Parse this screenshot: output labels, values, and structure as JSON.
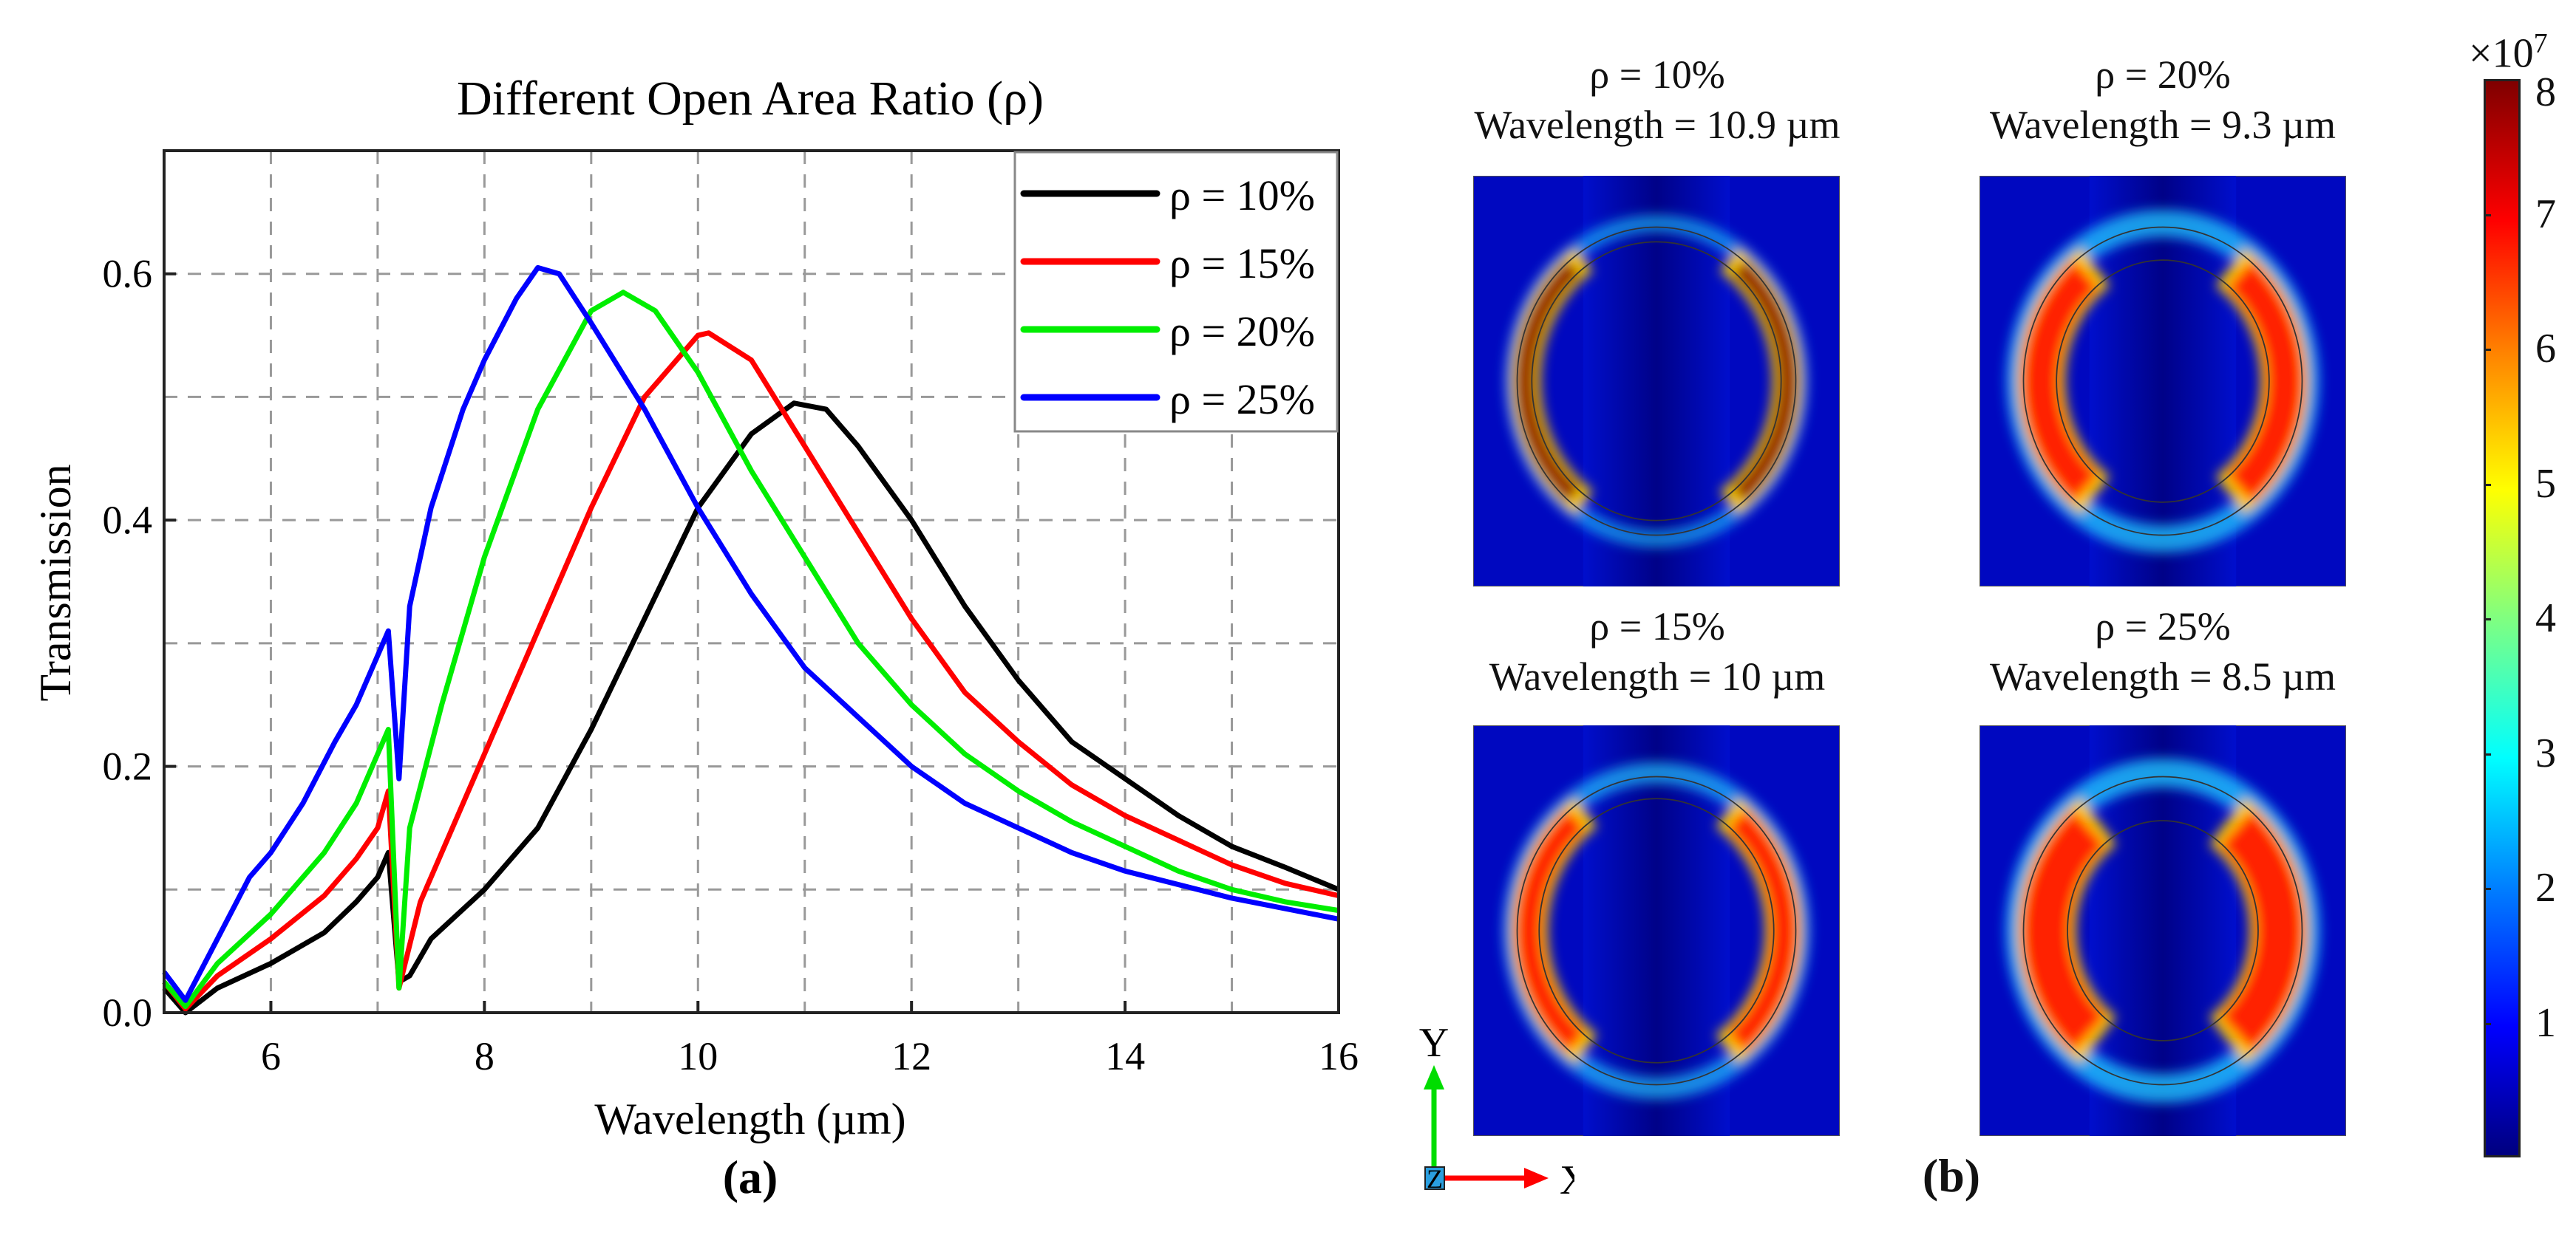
{
  "chart_data": {
    "type": "line",
    "title": "Different Open Area Ratio (ρ)",
    "xlabel": "Wavelength (µm)",
    "ylabel": "Transmission",
    "xlim": [
      5,
      16
    ],
    "ylim": [
      0,
      0.7
    ],
    "xticks": [
      6,
      8,
      10,
      12,
      14,
      16
    ],
    "xtick_labels": [
      "6",
      "8",
      "10",
      "12",
      "14",
      "16"
    ],
    "yticks": [
      0.0,
      0.2,
      0.4,
      0.6
    ],
    "ytick_labels": [
      "0.0",
      "0.2",
      "0.4",
      "0.6"
    ],
    "grid": true,
    "legend_position": "top-right",
    "series": [
      {
        "name": "ρ = 10%",
        "color": "#000000",
        "x": [
          5,
          5.2,
          5.5,
          6,
          6.5,
          6.8,
          7.0,
          7.1,
          7.2,
          7.3,
          7.5,
          8,
          8.5,
          9,
          9.5,
          10,
          10.5,
          10.9,
          11.2,
          11.5,
          12,
          12.5,
          13,
          13.5,
          14,
          14.5,
          15,
          15.5,
          16
        ],
        "y": [
          0.02,
          0.0,
          0.02,
          0.04,
          0.065,
          0.09,
          0.11,
          0.13,
          0.025,
          0.03,
          0.06,
          0.1,
          0.15,
          0.23,
          0.32,
          0.41,
          0.47,
          0.495,
          0.49,
          0.46,
          0.4,
          0.33,
          0.27,
          0.22,
          0.19,
          0.16,
          0.135,
          0.118,
          0.1
        ]
      },
      {
        "name": "ρ = 15%",
        "color": "#ff0000",
        "x": [
          5,
          5.2,
          5.5,
          6,
          6.5,
          6.8,
          7.0,
          7.1,
          7.2,
          7.4,
          7.7,
          8,
          8.5,
          9,
          9.5,
          10,
          10.1,
          10.5,
          11,
          11.5,
          12,
          12.5,
          13,
          13.5,
          14,
          14.5,
          15,
          15.5,
          16
        ],
        "y": [
          0.025,
          0.003,
          0.03,
          0.06,
          0.095,
          0.125,
          0.15,
          0.18,
          0.02,
          0.09,
          0.15,
          0.21,
          0.31,
          0.41,
          0.5,
          0.55,
          0.552,
          0.53,
          0.46,
          0.39,
          0.32,
          0.26,
          0.22,
          0.185,
          0.16,
          0.14,
          0.12,
          0.105,
          0.095
        ]
      },
      {
        "name": "ρ = 20%",
        "color": "#00ee00",
        "x": [
          5,
          5.2,
          5.5,
          6,
          6.5,
          6.8,
          7.0,
          7.1,
          7.2,
          7.3,
          7.6,
          8,
          8.5,
          9,
          9.3,
          9.6,
          10,
          10.5,
          11,
          11.5,
          12,
          12.5,
          13,
          13.5,
          14,
          14.5,
          15,
          15.5,
          16
        ],
        "y": [
          0.025,
          0.005,
          0.04,
          0.08,
          0.13,
          0.17,
          0.21,
          0.23,
          0.02,
          0.15,
          0.25,
          0.37,
          0.49,
          0.57,
          0.585,
          0.57,
          0.52,
          0.44,
          0.37,
          0.3,
          0.25,
          0.21,
          0.18,
          0.155,
          0.135,
          0.115,
          0.1,
          0.09,
          0.083
        ]
      },
      {
        "name": "ρ = 25%",
        "color": "#0000ff",
        "x": [
          5,
          5.2,
          5.5,
          5.8,
          6,
          6.3,
          6.6,
          6.8,
          7.0,
          7.1,
          7.2,
          7.3,
          7.5,
          7.8,
          8,
          8.3,
          8.5,
          8.7,
          9,
          9.5,
          10,
          10.5,
          11,
          11.5,
          12,
          12.5,
          13,
          13.5,
          14,
          15,
          16
        ],
        "y": [
          0.033,
          0.01,
          0.06,
          0.11,
          0.13,
          0.17,
          0.22,
          0.25,
          0.29,
          0.31,
          0.19,
          0.33,
          0.41,
          0.49,
          0.53,
          0.58,
          0.605,
          0.6,
          0.56,
          0.49,
          0.41,
          0.34,
          0.28,
          0.24,
          0.2,
          0.17,
          0.15,
          0.13,
          0.115,
          0.093,
          0.076
        ]
      }
    ],
    "panel_label": "(a)"
  },
  "field_maps": {
    "panels": [
      {
        "rho": "ρ = 10%",
        "wavelength": "Wavelength = 10.9 µm",
        "intensity": 1.0,
        "outer_ring": 0.2
      },
      {
        "rho": "ρ = 20%",
        "wavelength": "Wavelength = 9.3 µm",
        "intensity": 0.8,
        "outer_ring": 0.55
      },
      {
        "rho": "ρ = 15%",
        "wavelength": "Wavelength = 10 µm",
        "intensity": 0.85,
        "outer_ring": 0.35
      },
      {
        "rho": "ρ = 25%",
        "wavelength": "Wavelength = 8.5 µm",
        "intensity": 0.7,
        "outer_ring": 0.6
      }
    ],
    "colorbar": {
      "multiplier": "×10",
      "exponent": "7",
      "ticks": [
        "8",
        "7",
        "6",
        "5",
        "4",
        "3",
        "2",
        "1"
      ],
      "min": 0,
      "max": 8
    },
    "axes": {
      "y": "Y",
      "x": "X",
      "z": "Z"
    },
    "panel_label": "(b)"
  }
}
